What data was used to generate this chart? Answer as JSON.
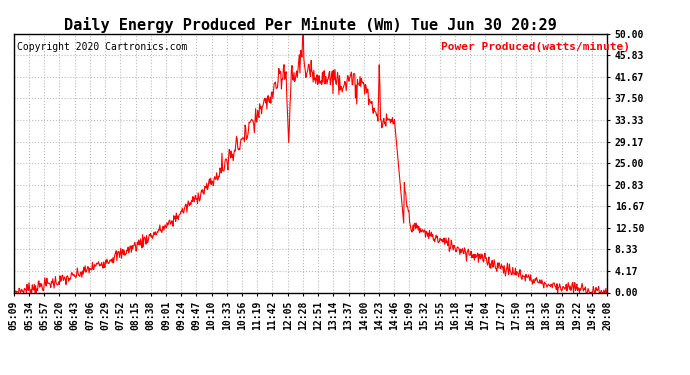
{
  "title": "Daily Energy Produced Per Minute (Wm) Tue Jun 30 20:29",
  "copyright_text": "Copyright 2020 Cartronics.com",
  "legend_text": "Power Produced(watts/minute)",
  "ymin": 0,
  "ymax": 50,
  "ytick_values": [
    0.0,
    4.17,
    8.33,
    12.5,
    16.67,
    20.83,
    25.0,
    29.17,
    33.33,
    37.5,
    41.67,
    45.83,
    50.0
  ],
  "ytick_labels": [
    "0.00",
    "4.17",
    "8.33",
    "12.50",
    "16.67",
    "20.83",
    "25.00",
    "29.17",
    "33.33",
    "37.50",
    "41.67",
    "45.83",
    "50.00"
  ],
  "xtick_labels": [
    "05:09",
    "05:34",
    "05:57",
    "06:20",
    "06:43",
    "07:06",
    "07:29",
    "07:52",
    "08:15",
    "08:38",
    "09:01",
    "09:24",
    "09:47",
    "10:10",
    "10:33",
    "10:56",
    "11:19",
    "11:42",
    "12:05",
    "12:28",
    "12:51",
    "13:14",
    "13:37",
    "14:00",
    "14:23",
    "14:46",
    "15:09",
    "15:32",
    "15:55",
    "16:18",
    "16:41",
    "17:04",
    "17:27",
    "17:50",
    "18:13",
    "18:36",
    "18:59",
    "19:22",
    "19:45",
    "20:08"
  ],
  "line_color": "#FF0000",
  "background_color": "#FFFFFF",
  "grid_color": "#BBBBBB",
  "title_color": "#000000",
  "copyright_color": "#000000",
  "legend_color": "#FF0000",
  "title_fontsize": 11,
  "axis_fontsize": 7,
  "copyright_fontsize": 7,
  "legend_fontsize": 8
}
